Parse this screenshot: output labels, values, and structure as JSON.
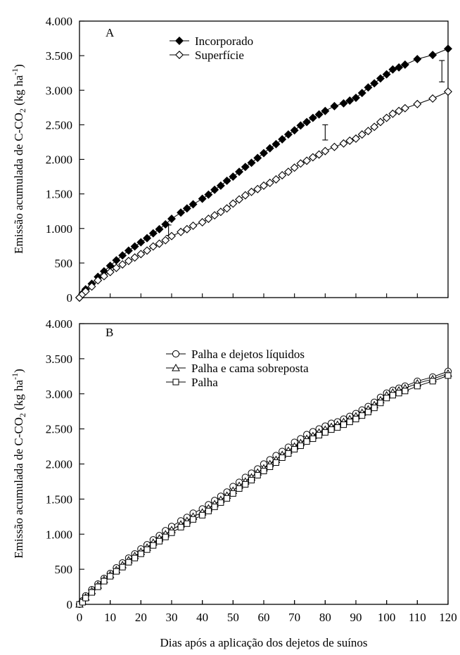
{
  "chart_data": [
    {
      "type": "line",
      "panel_label": "A",
      "ylabel_main": "Emissão acumulada de C-CO",
      "ylabel_sub": "2",
      "ylabel_unit": " (kg ha",
      "ylabel_sup": "-1",
      "ylabel_close": ")",
      "xlim": [
        0,
        120
      ],
      "ylim": [
        0,
        4000
      ],
      "yticks": [
        0,
        500,
        1000,
        1500,
        2000,
        2500,
        3000,
        3500,
        4000
      ],
      "ytick_labels": [
        "0",
        "500",
        "1.000",
        "1.500",
        "2.000",
        "2.500",
        "3.000",
        "3.500",
        "4.000"
      ],
      "legend_position": "top-center",
      "error_bars": [
        {
          "x": 29,
          "low": 900,
          "high": 1050
        },
        {
          "x": 80,
          "low": 2280,
          "high": 2500
        },
        {
          "x": 118,
          "low": 3120,
          "high": 3430
        }
      ],
      "series": [
        {
          "name": "Incorporado",
          "marker": "diamond-filled",
          "x": [
            0,
            1,
            2,
            4,
            6,
            8,
            10,
            12,
            14,
            16,
            18,
            20,
            22,
            24,
            26,
            28,
            30,
            33,
            35,
            37,
            40,
            42,
            44,
            46,
            48,
            50,
            52,
            54,
            56,
            58,
            60,
            62,
            64,
            66,
            68,
            70,
            72,
            74,
            76,
            78,
            80,
            83,
            86,
            88,
            90,
            92,
            94,
            96,
            98,
            100,
            102,
            104,
            106,
            110,
            115,
            120
          ],
          "y": [
            0,
            60,
            120,
            200,
            300,
            380,
            460,
            540,
            610,
            680,
            740,
            800,
            860,
            930,
            990,
            1060,
            1140,
            1230,
            1290,
            1350,
            1430,
            1490,
            1560,
            1620,
            1690,
            1750,
            1820,
            1890,
            1950,
            2020,
            2090,
            2160,
            2220,
            2290,
            2360,
            2420,
            2490,
            2540,
            2600,
            2650,
            2700,
            2770,
            2810,
            2850,
            2890,
            2960,
            3040,
            3100,
            3170,
            3230,
            3300,
            3330,
            3370,
            3450,
            3510,
            3600
          ]
        },
        {
          "name": "Superfície",
          "marker": "diamond-open",
          "x": [
            0,
            1,
            2,
            4,
            6,
            8,
            10,
            12,
            14,
            16,
            18,
            20,
            22,
            24,
            26,
            28,
            30,
            33,
            35,
            37,
            40,
            42,
            44,
            46,
            48,
            50,
            52,
            54,
            56,
            58,
            60,
            62,
            64,
            66,
            68,
            70,
            72,
            74,
            76,
            78,
            80,
            83,
            86,
            88,
            90,
            92,
            94,
            96,
            98,
            100,
            102,
            104,
            106,
            110,
            115,
            120
          ],
          "y": [
            0,
            50,
            90,
            160,
            250,
            310,
            370,
            430,
            480,
            530,
            580,
            630,
            680,
            740,
            780,
            830,
            890,
            950,
            990,
            1040,
            1090,
            1140,
            1190,
            1240,
            1290,
            1360,
            1420,
            1480,
            1530,
            1570,
            1620,
            1660,
            1710,
            1770,
            1820,
            1880,
            1940,
            1980,
            2030,
            2070,
            2120,
            2180,
            2230,
            2270,
            2300,
            2360,
            2410,
            2470,
            2540,
            2600,
            2660,
            2700,
            2740,
            2800,
            2880,
            2980
          ]
        }
      ]
    },
    {
      "type": "line",
      "panel_label": "B",
      "ylabel_main": "Emissão acumulada de C-CO",
      "ylabel_sub": "2",
      "ylabel_unit": " (kg ha",
      "ylabel_sup": "-1",
      "ylabel_close": ")",
      "xlabel": "Dias após a aplicação dos dejetos de suínos",
      "xlim": [
        0,
        120
      ],
      "ylim": [
        0,
        4000
      ],
      "xticks": [
        0,
        10,
        20,
        30,
        40,
        50,
        60,
        70,
        80,
        90,
        100,
        110,
        120
      ],
      "xtick_labels": [
        "0",
        "10",
        "20",
        "30",
        "40",
        "50",
        "60",
        "70",
        "80",
        "90",
        "100",
        "110",
        "120"
      ],
      "yticks": [
        0,
        500,
        1000,
        1500,
        2000,
        2500,
        3000,
        3500,
        4000
      ],
      "ytick_labels": [
        "0",
        "500",
        "1.000",
        "1.500",
        "2.000",
        "2.500",
        "3.000",
        "3.500",
        "4.000"
      ],
      "legend_position": "top-center",
      "series": [
        {
          "name": "Palha e dejetos líquidos",
          "marker": "circle-open",
          "x": [
            0,
            1,
            2,
            4,
            6,
            8,
            10,
            12,
            14,
            16,
            18,
            20,
            22,
            24,
            26,
            28,
            30,
            33,
            35,
            37,
            40,
            42,
            44,
            46,
            48,
            50,
            52,
            54,
            56,
            58,
            60,
            62,
            64,
            66,
            68,
            70,
            72,
            74,
            76,
            78,
            80,
            82,
            84,
            86,
            88,
            90,
            92,
            94,
            96,
            98,
            100,
            102,
            104,
            106,
            110,
            115,
            120
          ],
          "y": [
            0,
            50,
            120,
            210,
            290,
            370,
            440,
            520,
            590,
            660,
            720,
            790,
            850,
            920,
            980,
            1050,
            1110,
            1190,
            1240,
            1300,
            1360,
            1420,
            1480,
            1540,
            1600,
            1680,
            1740,
            1810,
            1870,
            1930,
            2000,
            2060,
            2120,
            2180,
            2240,
            2310,
            2360,
            2420,
            2460,
            2500,
            2540,
            2580,
            2600,
            2640,
            2680,
            2720,
            2770,
            2820,
            2880,
            2950,
            3010,
            3050,
            3080,
            3110,
            3180,
            3240,
            3320
          ]
        },
        {
          "name": "Palha e cama sobreposta",
          "marker": "triangle-open",
          "x": [
            0,
            1,
            2,
            4,
            6,
            8,
            10,
            12,
            14,
            16,
            18,
            20,
            22,
            24,
            26,
            28,
            30,
            33,
            35,
            37,
            40,
            42,
            44,
            46,
            48,
            50,
            52,
            54,
            56,
            58,
            60,
            62,
            64,
            66,
            68,
            70,
            72,
            74,
            76,
            78,
            80,
            82,
            84,
            86,
            88,
            90,
            92,
            94,
            96,
            98,
            100,
            102,
            104,
            106,
            110,
            115,
            120
          ],
          "y": [
            0,
            40,
            100,
            190,
            270,
            350,
            420,
            490,
            560,
            630,
            690,
            750,
            810,
            880,
            940,
            1000,
            1060,
            1140,
            1190,
            1250,
            1310,
            1370,
            1430,
            1490,
            1550,
            1620,
            1690,
            1750,
            1810,
            1880,
            1940,
            2000,
            2060,
            2130,
            2190,
            2250,
            2300,
            2360,
            2400,
            2450,
            2490,
            2530,
            2560,
            2600,
            2640,
            2680,
            2730,
            2780,
            2840,
            2910,
            2980,
            3020,
            3050,
            3080,
            3150,
            3210,
            3290
          ]
        },
        {
          "name": "Palha",
          "marker": "square-open",
          "x": [
            0,
            1,
            2,
            4,
            6,
            8,
            10,
            12,
            14,
            16,
            18,
            20,
            22,
            24,
            26,
            28,
            30,
            33,
            35,
            37,
            40,
            42,
            44,
            46,
            48,
            50,
            52,
            54,
            56,
            58,
            60,
            62,
            64,
            66,
            68,
            70,
            72,
            74,
            76,
            78,
            80,
            82,
            84,
            86,
            88,
            90,
            92,
            94,
            96,
            98,
            100,
            102,
            104,
            106,
            110,
            115,
            120
          ],
          "y": [
            0,
            30,
            90,
            170,
            250,
            330,
            400,
            470,
            530,
            600,
            660,
            720,
            780,
            840,
            900,
            960,
            1020,
            1100,
            1150,
            1210,
            1270,
            1330,
            1390,
            1450,
            1510,
            1580,
            1650,
            1710,
            1770,
            1840,
            1900,
            1960,
            2020,
            2090,
            2150,
            2210,
            2260,
            2320,
            2360,
            2410,
            2450,
            2490,
            2520,
            2560,
            2600,
            2640,
            2690,
            2740,
            2800,
            2870,
            2940,
            2980,
            3010,
            3040,
            3110,
            3180,
            3260
          ]
        }
      ]
    }
  ]
}
